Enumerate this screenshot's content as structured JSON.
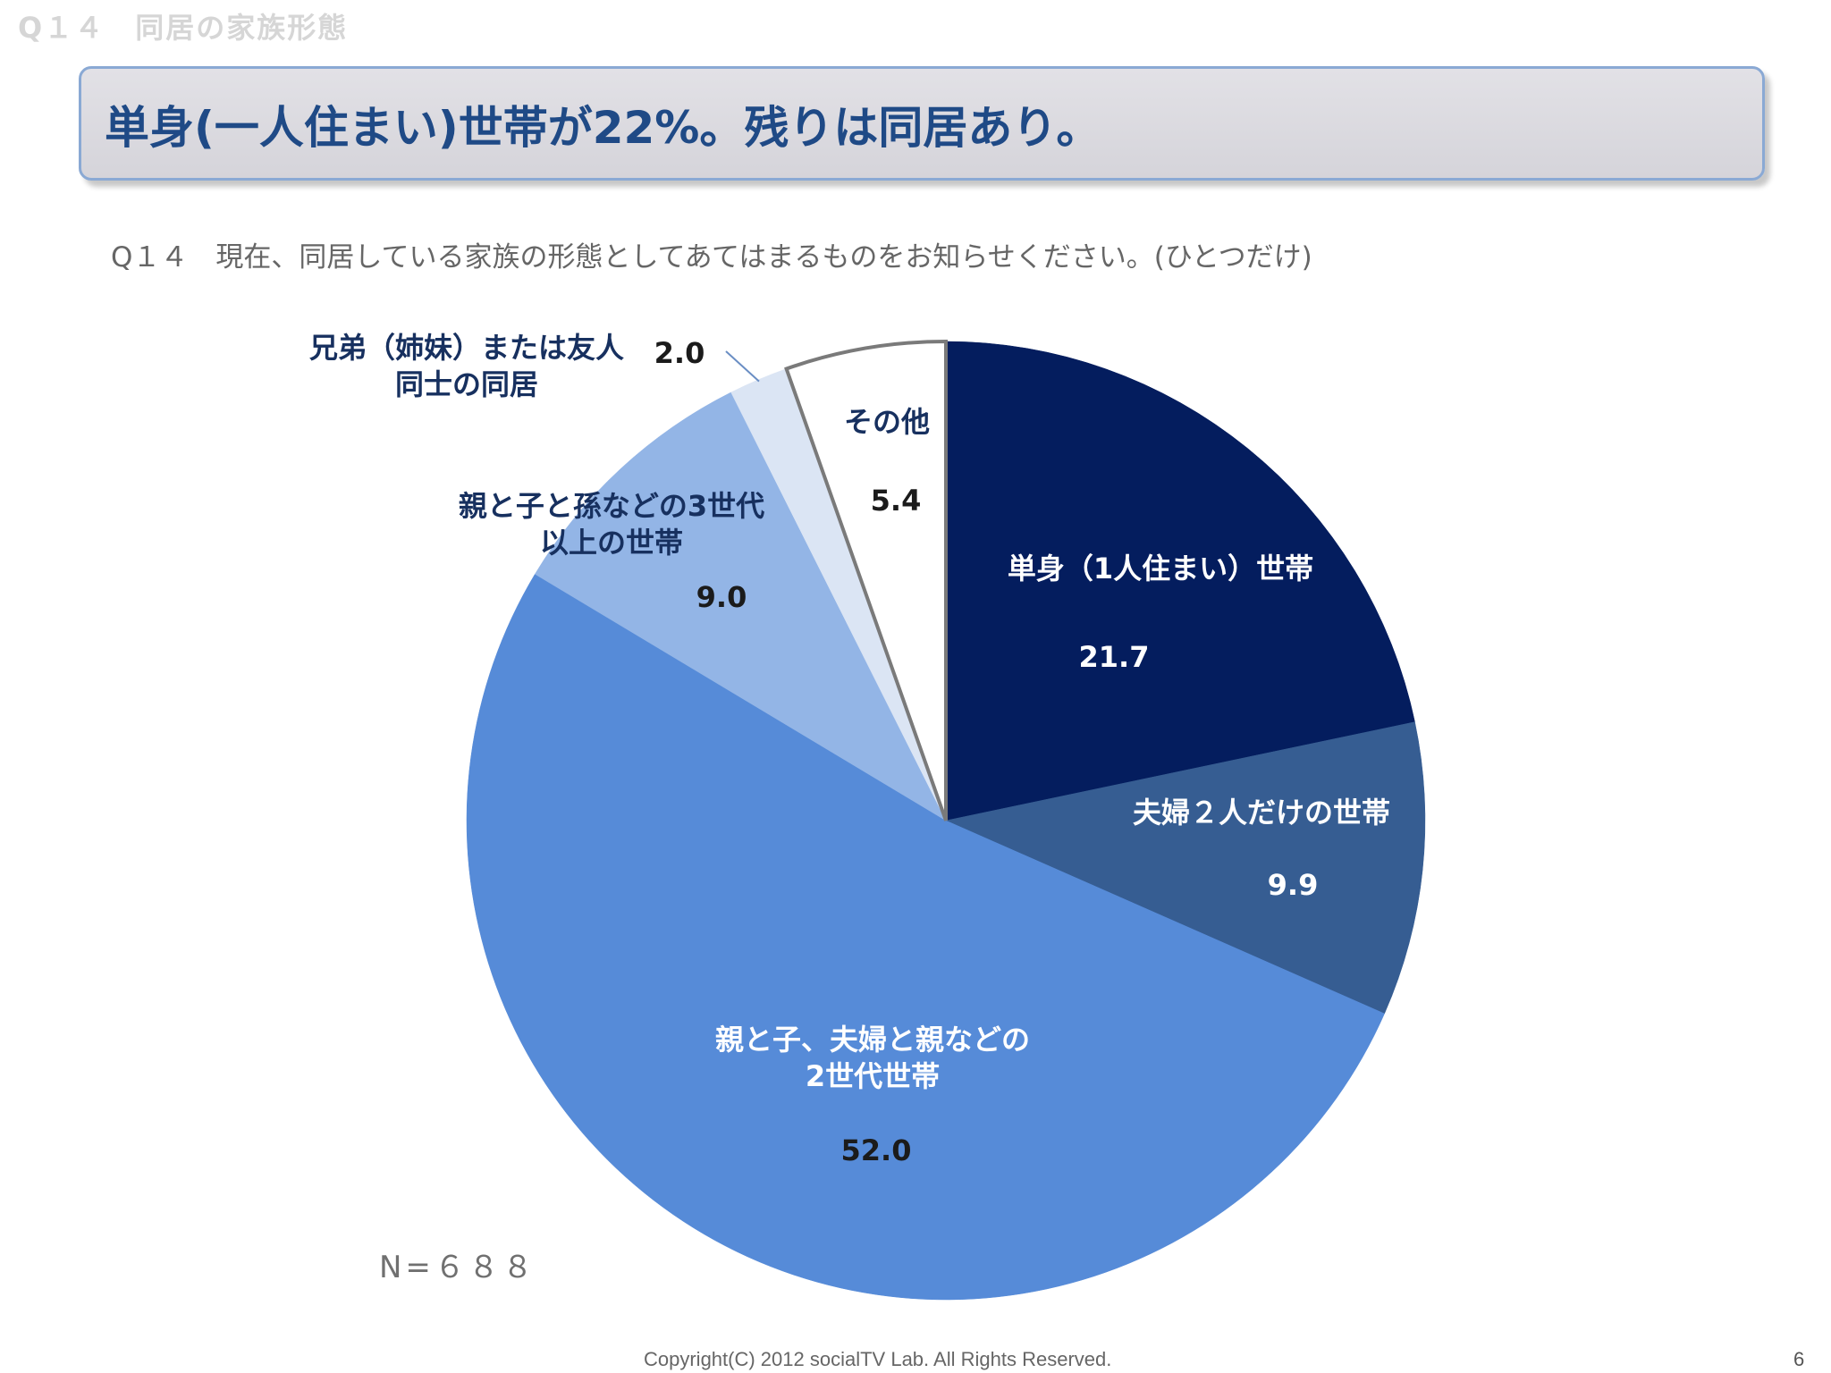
{
  "section_label": "Q１４　同居の家族形態",
  "headline": "単身(一人住まい)世帯が22%。残りは同居あり。",
  "question": "Q１４　現在、同居している家族の形態としてあてはまるものをお知らせください。(ひとつだけ)",
  "sample_size": "N=６８８",
  "footer": {
    "copyright": "Copyright(C) 2012 socialTV Lab. All Rights Reserved.",
    "page_number": "6"
  },
  "chart_data": {
    "type": "pie",
    "title": "",
    "unit": "%",
    "start": "12 o'clock",
    "direction": "clockwise",
    "slices": [
      {
        "label": "単身（1人住まい）世帯",
        "value": 21.7,
        "value_label": "21.7",
        "color": "#041d5e"
      },
      {
        "label": "夫婦２人だけの世帯",
        "value": 9.9,
        "value_label": "9.9",
        "color": "#365d92"
      },
      {
        "label": "親と子、夫婦と親などの2世代世帯",
        "value": 52.0,
        "value_label": "52.0",
        "color": "#568bd8"
      },
      {
        "label": "親と子と孫などの3世代以上の世帯",
        "value": 9.0,
        "value_label": "9.0",
        "color": "#93b5e6"
      },
      {
        "label": "兄弟（姉妹）または友人同士の同居",
        "value": 2.0,
        "value_label": "2.0",
        "color": "#dbe5f4"
      },
      {
        "label": "その他",
        "value": 5.4,
        "value_label": "5.4",
        "color": "#ffffff",
        "outline": "#7a7a7a"
      }
    ]
  },
  "labels": {
    "single_1": "単身（1人住まい）世帯",
    "single_val": "21.7",
    "couple_1": "夫婦２人だけの世帯",
    "couple_val": "9.9",
    "two_gen_1": "親と子、夫婦と親などの",
    "two_gen_2": "2世代世帯",
    "two_gen_val": "52.0",
    "three_gen_1": "親と子と孫などの3世代",
    "three_gen_2": "以上の世帯",
    "three_gen_val": "9.0",
    "siblings_1": "兄弟（姉妹）または友人",
    "siblings_2": "同士の同居",
    "siblings_val": "2.0",
    "other_1": "その他",
    "other_val": "5.4"
  }
}
